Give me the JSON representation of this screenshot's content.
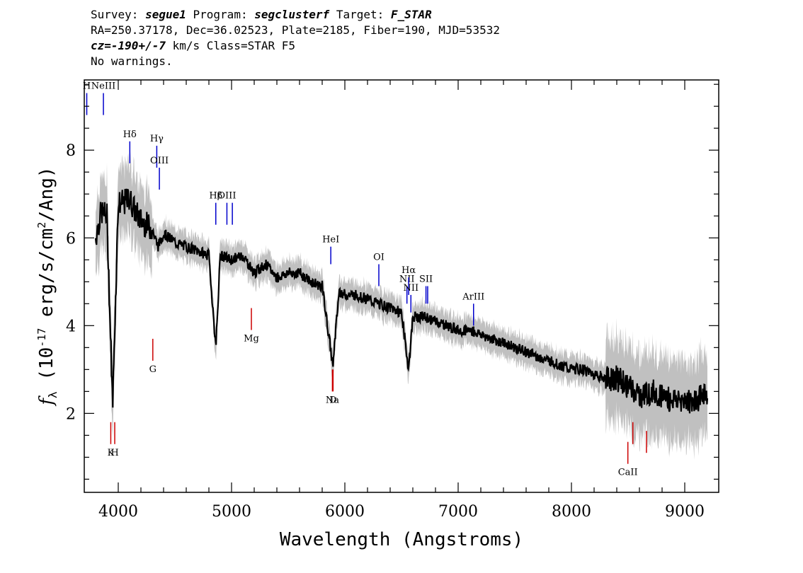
{
  "header": {
    "survey_label": "Survey:",
    "survey_value": "segue1",
    "program_label": "Program:",
    "program_value": "segclusterf",
    "target_label": "Target:",
    "target_value": "F_STAR",
    "line2": "RA=250.37178, Dec=36.02523, Plate=2185, Fiber=190, MJD=53532",
    "cz_label": "cz=",
    "cz_value": "-190+/-7",
    "cz_unit_class": "km/s Class=STAR F5",
    "line4": "No warnings."
  },
  "chart_data": {
    "type": "line",
    "xlabel": "Wavelength (Angstroms)",
    "ylabel": "f_λ (10^-17 erg/s/cm^2/Ang)",
    "xlim": [
      3700,
      9300
    ],
    "ylim": [
      0.2,
      9.6
    ],
    "x_ticks": [
      4000,
      5000,
      6000,
      7000,
      8000,
      9000
    ],
    "y_ticks": [
      2,
      4,
      6,
      8
    ],
    "colors": {
      "flux": "#000000",
      "error_band": "#c0c0c0",
      "emission": "#0000cc",
      "absorption": "#cc0000"
    },
    "series": [
      {
        "name": "flux",
        "x": [
          3800,
          3850,
          3900,
          3950,
          4000,
          4050,
          4100,
          4150,
          4200,
          4250,
          4300,
          4350,
          4400,
          4450,
          4500,
          4600,
          4700,
          4800,
          4861,
          4900,
          5000,
          5100,
          5200,
          5300,
          5400,
          5500,
          5600,
          5700,
          5800,
          5893,
          5950,
          6000,
          6100,
          6200,
          6300,
          6400,
          6500,
          6563,
          6600,
          6700,
          6800,
          6900,
          7000,
          7100,
          7200,
          7300,
          7400,
          7500,
          7600,
          7700,
          7800,
          7900,
          8000,
          8100,
          8200,
          8300,
          8400,
          8500,
          8600,
          8700,
          8800,
          8900,
          9000,
          9100,
          9200
        ],
        "y": [
          6.0,
          6.6,
          6.5,
          2.2,
          6.8,
          6.8,
          6.9,
          6.6,
          6.4,
          6.3,
          6.2,
          5.8,
          6.1,
          6.0,
          5.9,
          5.8,
          5.7,
          5.6,
          3.5,
          5.6,
          5.5,
          5.6,
          5.2,
          5.4,
          5.1,
          5.2,
          5.2,
          5.0,
          4.9,
          3.1,
          4.8,
          4.7,
          4.7,
          4.6,
          4.5,
          4.4,
          4.3,
          3.0,
          4.2,
          4.2,
          4.1,
          4.0,
          3.9,
          3.9,
          3.8,
          3.7,
          3.6,
          3.5,
          3.4,
          3.3,
          3.2,
          3.1,
          3.0,
          3.0,
          2.9,
          2.8,
          2.8,
          2.6,
          2.4,
          2.5,
          2.4,
          2.3,
          2.3,
          2.3,
          2.5
        ]
      }
    ],
    "lines": [
      {
        "label": "H",
        "x": 3722,
        "kind": "emission",
        "y_low": 8.8,
        "y_high": 9.3
      },
      {
        "label": "NeIII",
        "x": 3869,
        "kind": "emission",
        "y_low": 8.8,
        "y_high": 9.3
      },
      {
        "label": "Hδ",
        "x": 4102,
        "kind": "emission",
        "y_low": 7.7,
        "y_high": 8.2
      },
      {
        "label": "Hγ",
        "x": 4340,
        "kind": "emission",
        "y_low": 7.6,
        "y_high": 8.1
      },
      {
        "label": "OIII",
        "x": 4363,
        "kind": "emission",
        "y_low": 7.1,
        "y_high": 7.6
      },
      {
        "label": "Hβ",
        "x": 4861,
        "kind": "emission",
        "y_low": 6.3,
        "y_high": 6.8
      },
      {
        "label": "OIII",
        "x": 4959,
        "kind": "emission",
        "y_low": 6.3,
        "y_high": 6.8
      },
      {
        "label": "",
        "x": 5007,
        "kind": "emission",
        "y_low": 6.3,
        "y_high": 6.8
      },
      {
        "label": "HeI",
        "x": 5876,
        "kind": "emission",
        "y_low": 5.4,
        "y_high": 5.8
      },
      {
        "label": "OI",
        "x": 6300,
        "kind": "emission",
        "y_low": 4.9,
        "y_high": 5.4
      },
      {
        "label": "NII",
        "x": 6548,
        "kind": "emission",
        "y_low": 4.5,
        "y_high": 4.9
      },
      {
        "label": "Hα",
        "x": 6563,
        "kind": "emission",
        "y_low": 4.7,
        "y_high": 5.1
      },
      {
        "label": "NII",
        "x": 6583,
        "kind": "emission",
        "y_low": 4.3,
        "y_high": 4.7
      },
      {
        "label": "SII",
        "x": 6716,
        "kind": "emission",
        "y_low": 4.5,
        "y_high": 4.9
      },
      {
        "label": "",
        "x": 6731,
        "kind": "emission",
        "y_low": 4.5,
        "y_high": 4.9
      },
      {
        "label": "ArIII",
        "x": 7136,
        "kind": "emission",
        "y_low": 4.0,
        "y_high": 4.5
      },
      {
        "label": "K",
        "x": 3934,
        "kind": "absorption",
        "y_low": 1.3,
        "y_high": 1.8
      },
      {
        "label": "H",
        "x": 3969,
        "kind": "absorption",
        "y_low": 1.3,
        "y_high": 1.8
      },
      {
        "label": "G",
        "x": 4305,
        "kind": "absorption",
        "y_low": 3.2,
        "y_high": 3.7
      },
      {
        "label": "Mg",
        "x": 5175,
        "kind": "absorption",
        "y_low": 3.9,
        "y_high": 4.4
      },
      {
        "label": "Na",
        "x": 5890,
        "kind": "absorption",
        "y_low": 2.5,
        "y_high": 3.0
      },
      {
        "label": "D",
        "x": 5896,
        "kind": "absorption",
        "y_low": 2.5,
        "y_high": 3.0
      },
      {
        "label": "CaII",
        "x": 8498,
        "kind": "absorption",
        "y_low": 0.85,
        "y_high": 1.35
      },
      {
        "label": "",
        "x": 8542,
        "kind": "absorption",
        "y_low": 1.3,
        "y_high": 1.8
      },
      {
        "label": "",
        "x": 8662,
        "kind": "absorption",
        "y_low": 1.1,
        "y_high": 1.6
      }
    ]
  }
}
